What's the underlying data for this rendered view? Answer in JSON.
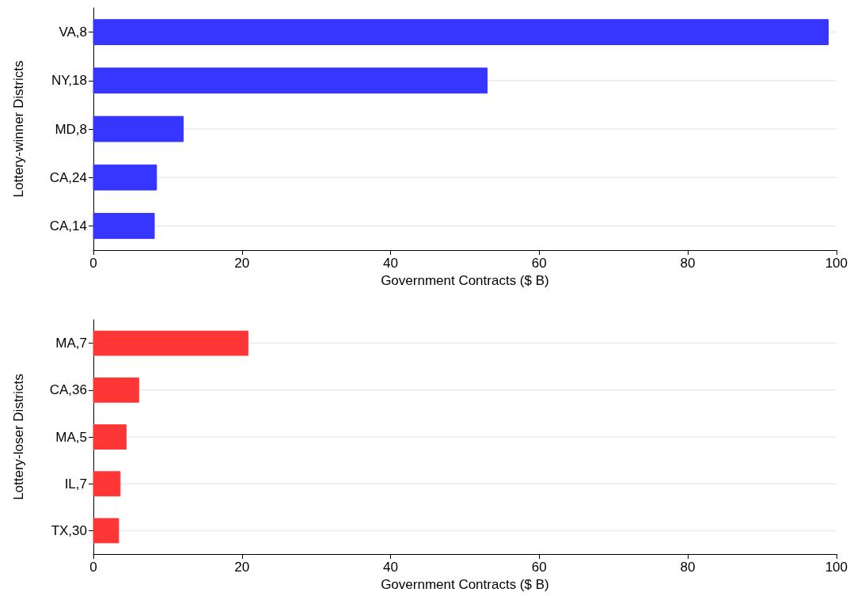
{
  "chart_data": [
    {
      "type": "bar",
      "orientation": "horizontal",
      "ylabel": "Lottery-winner Districts",
      "xlabel": "Government Contracts ($ B)",
      "categories": [
        "VA,8",
        "NY,18",
        "MD,8",
        "CA,24",
        "CA,14"
      ],
      "values": [
        98.9,
        53.0,
        12.1,
        8.5,
        8.2
      ],
      "color": "#3636ff",
      "xlim": [
        0,
        100
      ],
      "xticks": [
        0,
        20,
        40,
        60,
        80,
        100
      ],
      "grid": "y"
    },
    {
      "type": "bar",
      "orientation": "horizontal",
      "ylabel": "Lottery-loser Districts",
      "xlabel": "Government Contracts ($ B)",
      "categories": [
        "MA,7",
        "CA,36",
        "MA,5",
        "IL,7",
        "TX,30"
      ],
      "values": [
        20.8,
        6.1,
        4.4,
        3.6,
        3.4
      ],
      "color": "#ff3636",
      "xlim": [
        0,
        100
      ],
      "xticks": [
        0,
        20,
        40,
        60,
        80,
        100
      ],
      "grid": "y"
    }
  ]
}
